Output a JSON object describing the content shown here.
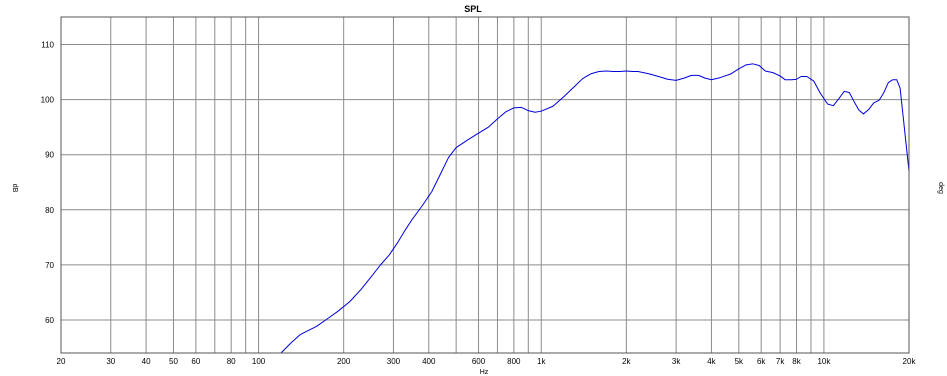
{
  "chart_data": {
    "type": "line",
    "title": "SPL",
    "xlabel": "Hz",
    "ylabel": "dB",
    "ylabel_right": "deg",
    "x_scale": "log",
    "xlim": [
      20,
      20000
    ],
    "ylim": [
      54,
      115
    ],
    "grid": true,
    "x_ticks": [
      {
        "v": 20,
        "label": "20"
      },
      {
        "v": 30,
        "label": "30"
      },
      {
        "v": 40,
        "label": "40"
      },
      {
        "v": 50,
        "label": "50"
      },
      {
        "v": 60,
        "label": "60"
      },
      {
        "v": 80,
        "label": "80"
      },
      {
        "v": 100,
        "label": "100"
      },
      {
        "v": 200,
        "label": "200"
      },
      {
        "v": 300,
        "label": "300"
      },
      {
        "v": 400,
        "label": "400"
      },
      {
        "v": 600,
        "label": "600"
      },
      {
        "v": 800,
        "label": "800"
      },
      {
        "v": 1000,
        "label": "1k"
      },
      {
        "v": 2000,
        "label": "2k"
      },
      {
        "v": 3000,
        "label": "3k"
      },
      {
        "v": 4000,
        "label": "4k"
      },
      {
        "v": 5000,
        "label": "5k"
      },
      {
        "v": 6000,
        "label": "6k"
      },
      {
        "v": 7000,
        "label": "7k"
      },
      {
        "v": 8000,
        "label": "8k"
      },
      {
        "v": 10000,
        "label": "10k"
      },
      {
        "v": 20000,
        "label": "20k"
      }
    ],
    "x_minor_grid": [
      70,
      90,
      500,
      700,
      900,
      9000
    ],
    "y_ticks": [
      60,
      70,
      80,
      90,
      100,
      110
    ],
    "series": [
      {
        "color": "#0000dd",
        "points": [
          [
            120,
            54
          ],
          [
            130,
            55.8
          ],
          [
            140,
            57.3
          ],
          [
            150,
            58.1
          ],
          [
            160,
            58.8
          ],
          [
            175,
            60.2
          ],
          [
            190,
            61.5
          ],
          [
            210,
            63.3
          ],
          [
            230,
            65.5
          ],
          [
            250,
            67.8
          ],
          [
            270,
            70
          ],
          [
            290,
            71.8
          ],
          [
            310,
            74
          ],
          [
            330,
            76.3
          ],
          [
            350,
            78.3
          ],
          [
            380,
            80.8
          ],
          [
            410,
            83.3
          ],
          [
            440,
            86.5
          ],
          [
            470,
            89.5
          ],
          [
            500,
            91.3
          ],
          [
            550,
            92.7
          ],
          [
            600,
            93.9
          ],
          [
            650,
            95
          ],
          [
            700,
            96.5
          ],
          [
            750,
            97.8
          ],
          [
            800,
            98.5
          ],
          [
            850,
            98.6
          ],
          [
            900,
            98
          ],
          [
            950,
            97.7
          ],
          [
            1000,
            97.9
          ],
          [
            1100,
            98.8
          ],
          [
            1200,
            100.5
          ],
          [
            1300,
            102.2
          ],
          [
            1400,
            103.8
          ],
          [
            1500,
            104.7
          ],
          [
            1600,
            105.1
          ],
          [
            1700,
            105.2
          ],
          [
            1800,
            105.1
          ],
          [
            1900,
            105.1
          ],
          [
            2000,
            105.2
          ],
          [
            2100,
            105.1
          ],
          [
            2200,
            105.1
          ],
          [
            2400,
            104.7
          ],
          [
            2600,
            104.2
          ],
          [
            2800,
            103.7
          ],
          [
            3000,
            103.5
          ],
          [
            3200,
            103.9
          ],
          [
            3400,
            104.4
          ],
          [
            3600,
            104.4
          ],
          [
            3800,
            103.9
          ],
          [
            4000,
            103.6
          ],
          [
            4300,
            104
          ],
          [
            4700,
            104.7
          ],
          [
            5000,
            105.6
          ],
          [
            5300,
            106.3
          ],
          [
            5600,
            106.5
          ],
          [
            5900,
            106.2
          ],
          [
            6200,
            105.2
          ],
          [
            6600,
            104.9
          ],
          [
            7000,
            104.3
          ],
          [
            7300,
            103.6
          ],
          [
            7700,
            103.6
          ],
          [
            8000,
            103.7
          ],
          [
            8300,
            104.2
          ],
          [
            8700,
            104.2
          ],
          [
            9200,
            103.4
          ],
          [
            9700,
            101.2
          ],
          [
            10300,
            99.2
          ],
          [
            10800,
            98.9
          ],
          [
            11300,
            100.2
          ],
          [
            11800,
            101.5
          ],
          [
            12300,
            101.3
          ],
          [
            12800,
            99.6
          ],
          [
            13300,
            98.1
          ],
          [
            13800,
            97.4
          ],
          [
            14400,
            98.2
          ],
          [
            15000,
            99.4
          ],
          [
            15700,
            99.9
          ],
          [
            16300,
            101.3
          ],
          [
            16900,
            103.1
          ],
          [
            17500,
            103.6
          ],
          [
            18100,
            103.6
          ],
          [
            18600,
            102.1
          ],
          [
            19100,
            96.6
          ],
          [
            19600,
            91.2
          ],
          [
            20000,
            87
          ]
        ]
      }
    ]
  }
}
